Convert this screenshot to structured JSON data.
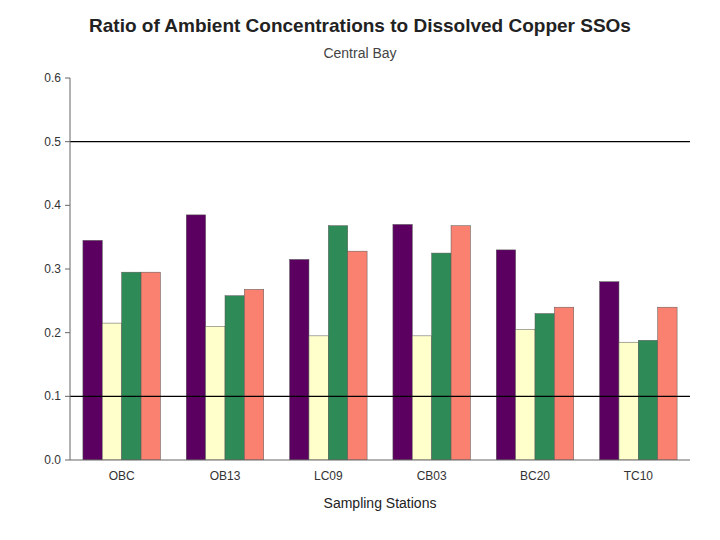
{
  "chart_data": {
    "type": "bar",
    "title": "Ratio of Ambient Concentrations to Dissolved Copper SSOs",
    "subtitle": "Central Bay",
    "xlabel": "Sampling Stations",
    "categories": [
      "OBC",
      "OB13",
      "LC09",
      "CB03",
      "BC20",
      "TC10"
    ],
    "series": [
      {
        "color": "#5B0060",
        "values": [
          0.345,
          0.385,
          0.315,
          0.37,
          0.33,
          0.28
        ]
      },
      {
        "color": "#FFFFCC",
        "values": [
          0.215,
          0.21,
          0.195,
          0.195,
          0.205,
          0.185
        ]
      },
      {
        "color": "#2E8B57",
        "values": [
          0.295,
          0.258,
          0.368,
          0.325,
          0.23,
          0.188
        ]
      },
      {
        "color": "#FA8070",
        "values": [
          0.295,
          0.268,
          0.328,
          0.368,
          0.24,
          0.24
        ]
      }
    ],
    "hlines": [
      0.5,
      0.1
    ],
    "ylim": [
      0.0,
      0.6
    ],
    "yticks": [
      {
        "value": 0.0,
        "label": "0.0"
      },
      0.1,
      0.2,
      0.3,
      0.4,
      0.5,
      0.6
    ],
    "grid": false
  }
}
